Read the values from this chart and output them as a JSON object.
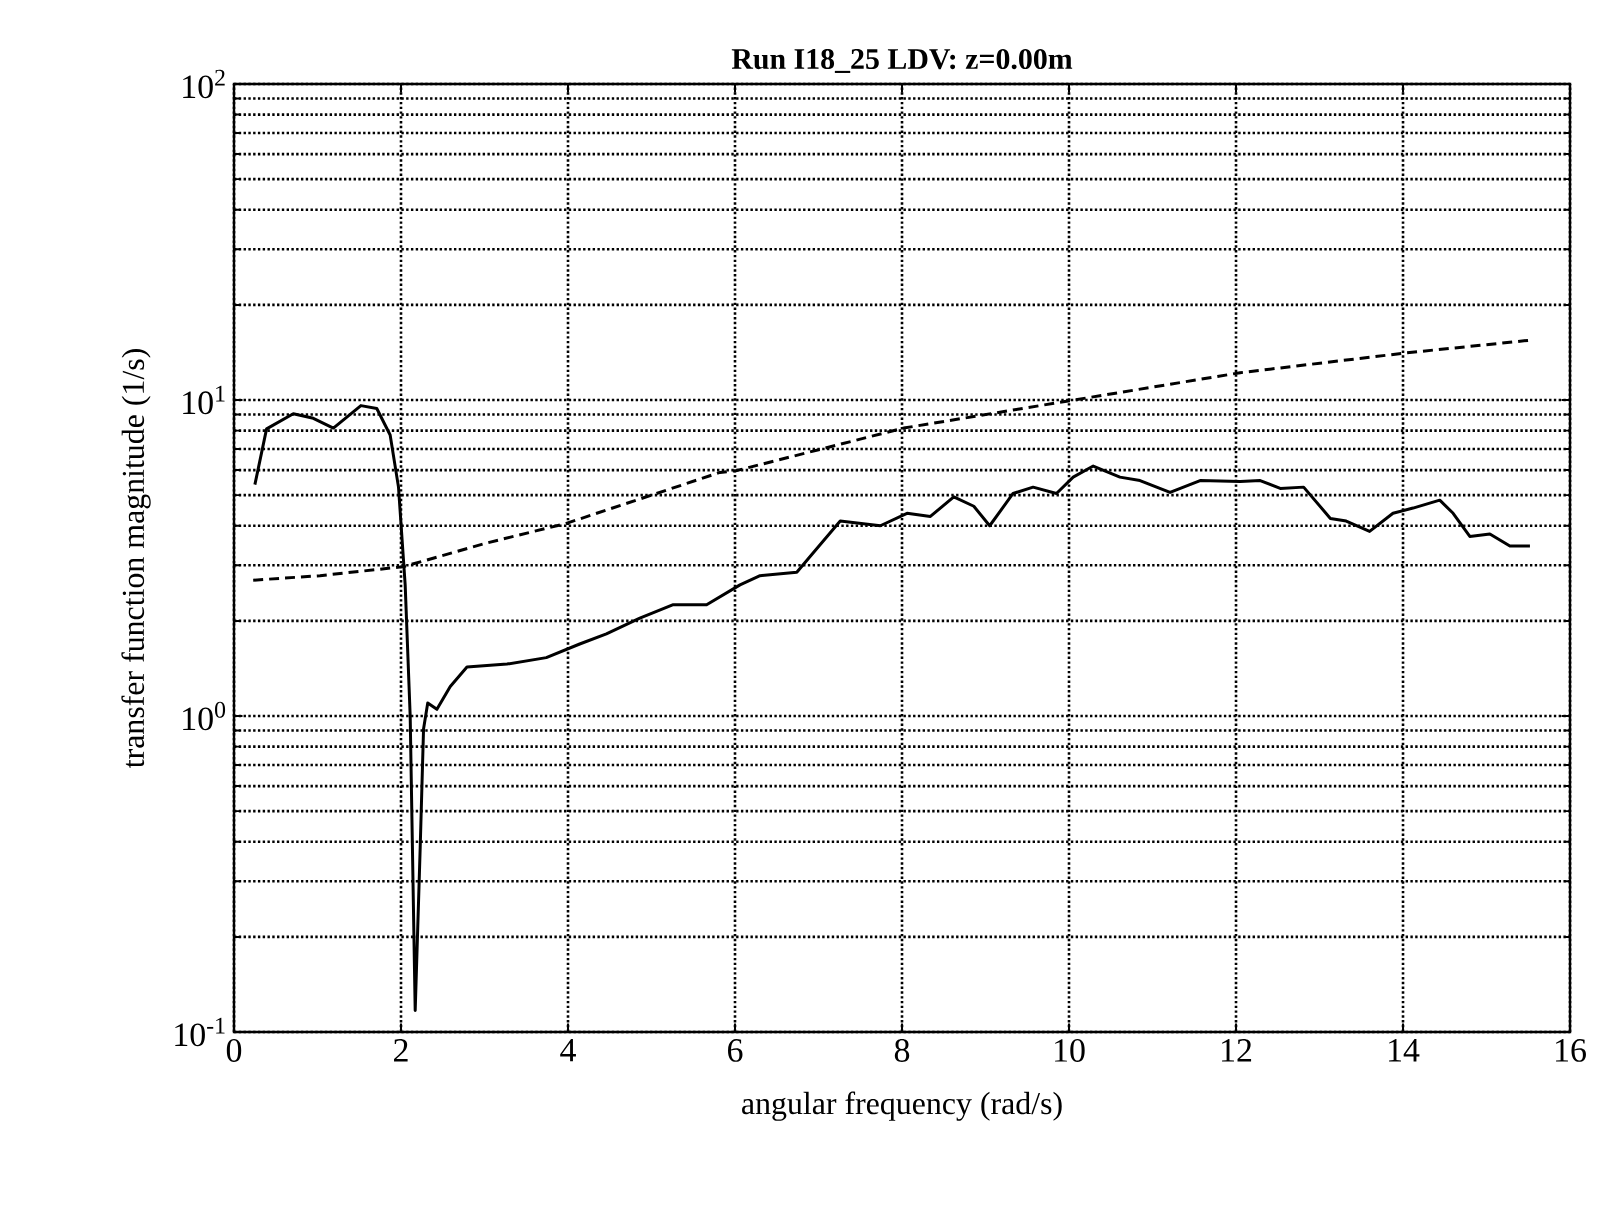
{
  "chart_data": {
    "type": "line",
    "title": "Run I18_25 LDV: z=0.00m",
    "xlabel": "angular frequency (rad/s)",
    "ylabel": "transfer function magnitude (1/s)",
    "xlim": [
      0,
      16
    ],
    "ylim": [
      0.1,
      100
    ],
    "log": "y",
    "grid": true,
    "marker": "none",
    "xticks": [
      0,
      2,
      4,
      6,
      8,
      10,
      12,
      14,
      16
    ],
    "yticks": [
      {
        "value": 0.1,
        "label": "10$^{-1}$"
      },
      {
        "value": 1,
        "label": "10$^{0}$"
      },
      {
        "value": 10,
        "label": "10$^{1}$"
      },
      {
        "value": 100,
        "label": "10$^{2}$"
      }
    ],
    "series": [
      {
        "color": "#000000",
        "line_style": "solid",
        "x": [
          0.25,
          0.39,
          0.71,
          0.95,
          1.19,
          1.52,
          1.71,
          1.87,
          1.97,
          2.05,
          2.11,
          2.17,
          2.23,
          2.27,
          2.32,
          2.43,
          2.59,
          2.79,
          3.27,
          3.74,
          4.14,
          4.46,
          4.86,
          5.26,
          5.66,
          6.06,
          6.3,
          6.74,
          6.94,
          7.26,
          7.74,
          8.06,
          8.34,
          8.62,
          8.86,
          9.05,
          9.33,
          9.57,
          9.85,
          10.05,
          10.29,
          10.61,
          10.85,
          11.21,
          11.57,
          12.05,
          12.29,
          12.53,
          12.81,
          13.13,
          13.32,
          13.6,
          13.88,
          14.12,
          14.44,
          14.6,
          14.8,
          15.04,
          15.28,
          15.52
        ],
        "values": [
          5.4,
          8.1,
          9.05,
          8.75,
          8.15,
          9.6,
          9.4,
          7.75,
          5.3,
          2.6,
          1.0,
          0.117,
          0.385,
          0.91,
          1.1,
          1.05,
          1.24,
          1.43,
          1.46,
          1.53,
          1.69,
          1.82,
          2.04,
          2.25,
          2.25,
          2.6,
          2.78,
          2.85,
          3.29,
          4.14,
          4.0,
          4.38,
          4.28,
          4.94,
          4.61,
          4.0,
          5.06,
          5.3,
          5.06,
          5.7,
          6.18,
          5.7,
          5.56,
          5.1,
          5.56,
          5.52,
          5.56,
          5.25,
          5.3,
          4.22,
          4.14,
          3.84,
          4.38,
          4.55,
          4.82,
          4.38,
          3.7,
          3.77,
          3.45,
          3.45
        ]
      },
      {
        "color": "#000000",
        "line_style": "dashed",
        "x": [
          0.23,
          1.03,
          2.03,
          3.03,
          3.98,
          4.94,
          5.82,
          6.02,
          8.02,
          10.01,
          12.05,
          14.04,
          15.56
        ],
        "values": [
          2.69,
          2.78,
          2.97,
          3.53,
          4.07,
          4.94,
          5.9,
          5.98,
          8.15,
          9.95,
          12.2,
          14.1,
          15.5
        ]
      }
    ]
  }
}
